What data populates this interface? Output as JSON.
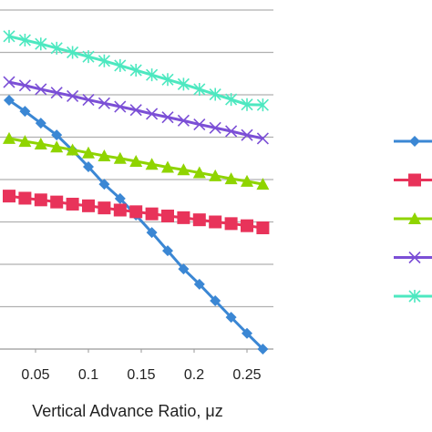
{
  "chart_data": {
    "type": "line",
    "x_label": "Vertical Advance Ratio, μz",
    "x": [
      0.025,
      0.04,
      0.055,
      0.07,
      0.085,
      0.1,
      0.115,
      0.13,
      0.145,
      0.16,
      0.175,
      0.19,
      0.205,
      0.22,
      0.235,
      0.25,
      0.265
    ],
    "series": [
      {
        "color": "#3b87d4",
        "marker": "diamond",
        "values": [
          5.87,
          5.61,
          5.33,
          5.05,
          4.69,
          4.3,
          3.89,
          3.55,
          3.16,
          2.75,
          2.32,
          1.89,
          1.53,
          1.14,
          0.75,
          0.37,
          0.0
        ]
      },
      {
        "color": "#e8335a",
        "marker": "square",
        "values": [
          3.61,
          3.56,
          3.52,
          3.47,
          3.42,
          3.38,
          3.33,
          3.28,
          3.24,
          3.19,
          3.14,
          3.1,
          3.05,
          3.0,
          2.96,
          2.91,
          2.86
        ]
      },
      {
        "color": "#8fd400",
        "marker": "triangle",
        "values": [
          4.97,
          4.9,
          4.84,
          4.77,
          4.7,
          4.63,
          4.56,
          4.5,
          4.43,
          4.36,
          4.29,
          4.23,
          4.16,
          4.09,
          4.02,
          3.96,
          3.89
        ]
      },
      {
        "color": "#7b4fd6",
        "marker": "x",
        "values": [
          6.3,
          6.22,
          6.13,
          6.05,
          5.97,
          5.88,
          5.8,
          5.72,
          5.64,
          5.55,
          5.47,
          5.39,
          5.3,
          5.22,
          5.14,
          5.05,
          4.97
        ]
      },
      {
        "color": "#4de8c0",
        "marker": "asterisk",
        "values": [
          7.38,
          7.29,
          7.2,
          7.1,
          7.0,
          6.9,
          6.8,
          6.69,
          6.58,
          6.47,
          6.36,
          6.25,
          6.13,
          6.01,
          5.89,
          5.77,
          5.76
        ]
      }
    ],
    "xlim": [
      0.015,
      0.275
    ],
    "xticks": [
      {
        "value": 0.05,
        "label": "0.05"
      },
      0.1,
      0.15,
      0.2,
      0.25
    ],
    "ylim": [
      0,
      8
    ],
    "yticks": [
      1,
      2,
      3,
      4,
      5,
      6,
      7,
      8
    ],
    "grid": true,
    "legend": "right"
  }
}
